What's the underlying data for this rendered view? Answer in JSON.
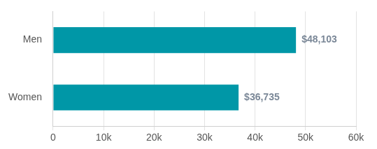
{
  "chart_data": {
    "type": "bar",
    "orientation": "horizontal",
    "categories": [
      "Men",
      "Women"
    ],
    "values": [
      48103,
      36735
    ],
    "value_labels": [
      "$48,103",
      "$36,735"
    ],
    "data_labels": true,
    "color": "#0097a7",
    "xlim": [
      0,
      60000
    ],
    "xticks": [
      0,
      {
        "value": 10000,
        "label": "10k"
      },
      {
        "value": 20000,
        "label": "20k"
      },
      {
        "value": 30000,
        "label": "30k"
      },
      {
        "value": 40000,
        "label": "40k"
      },
      {
        "value": 50000,
        "label": "50k"
      },
      {
        "value": 60000,
        "label": "60k"
      }
    ],
    "grid": true
  }
}
